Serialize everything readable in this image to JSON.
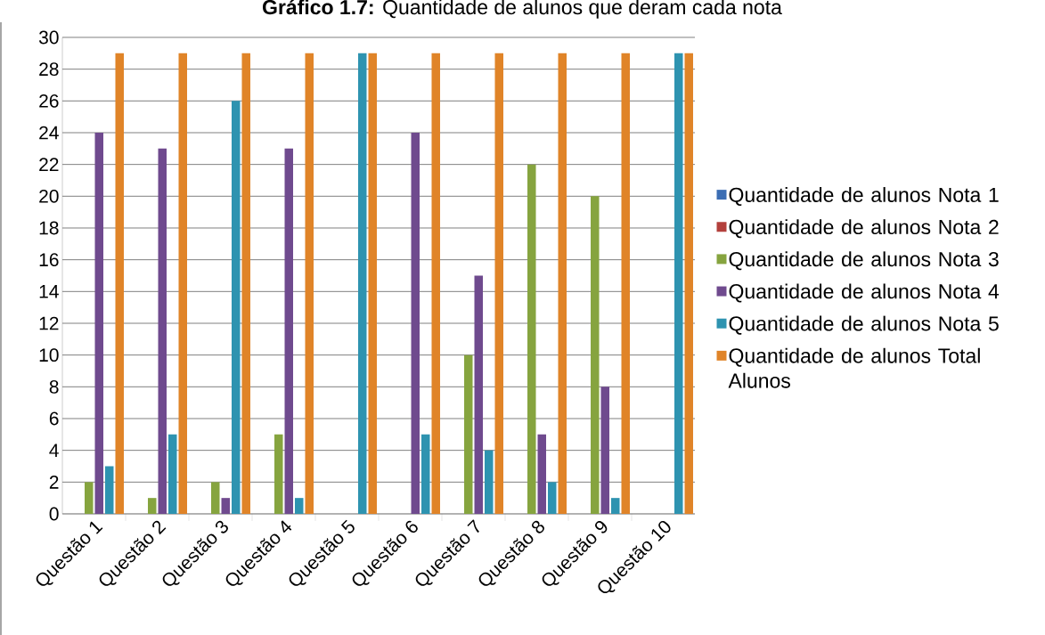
{
  "chart_data": {
    "type": "bar",
    "title": "**Gráfico 1.7:** Quantidade de alunos que deram cada nota",
    "categories": [
      "Questão 1",
      "Questão 2",
      "Questão 3",
      "Questão 4",
      "Questão 5",
      "Questão 6",
      "Questão 7",
      "Questão 8",
      "Questão 9",
      "Questão 10"
    ],
    "series": [
      {
        "name": "Quantidade de alunos Nota 1",
        "color": "#3c6eb4",
        "values": [
          0,
          0,
          0,
          0,
          0,
          0,
          0,
          0,
          0,
          0
        ]
      },
      {
        "name": "Quantidade de alunos Nota 2",
        "color": "#b3403c",
        "values": [
          0,
          0,
          0,
          0,
          0,
          0,
          0,
          0,
          0,
          0
        ]
      },
      {
        "name": "Quantidade de alunos Nota 3",
        "color": "#86a43f",
        "values": [
          2,
          1,
          2,
          5,
          0,
          0,
          10,
          22,
          20,
          0
        ]
      },
      {
        "name": "Quantidade de alunos Nota 4",
        "color": "#6f4a8e",
        "values": [
          24,
          23,
          1,
          23,
          0,
          24,
          15,
          5,
          8,
          0
        ]
      },
      {
        "name": "Quantidade de alunos Nota 5",
        "color": "#2e93b0",
        "values": [
          3,
          5,
          26,
          1,
          29,
          5,
          4,
          2,
          1,
          29
        ]
      },
      {
        "name": "Quantidade de alunos Total Alunos",
        "color": "#e08428",
        "values": [
          29,
          29,
          29,
          29,
          29,
          29,
          29,
          29,
          29,
          29
        ]
      }
    ],
    "ylim": [
      0,
      30
    ],
    "yticks": [
      0,
      2,
      4,
      6,
      8,
      10,
      12,
      14,
      16,
      18,
      20,
      22,
      24,
      26,
      28,
      30
    ],
    "grid": "y",
    "legend": "right"
  }
}
